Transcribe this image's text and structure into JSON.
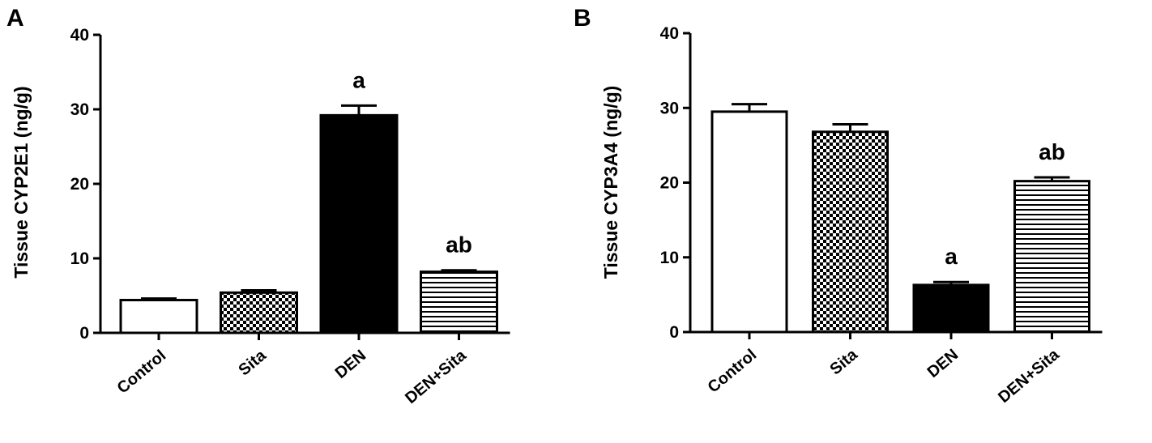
{
  "colors": {
    "ink": "#000000",
    "background": "#ffffff"
  },
  "chart_data": [
    {
      "panel": "A",
      "type": "bar",
      "title": "",
      "xlabel": "",
      "ylabel": "Tissue CYP2E1 (ng/g)",
      "ylim": [
        0,
        40
      ],
      "yticks": [
        "0",
        "10",
        "20",
        "30",
        "40"
      ],
      "grid": false,
      "categories": [
        "Control",
        "Sita",
        "DEN",
        "DEN+Sita"
      ],
      "values": [
        4.4,
        5.4,
        29.2,
        8.2
      ],
      "errors": [
        0.2,
        0.3,
        1.3,
        0.2
      ],
      "fills": [
        "white",
        "checker",
        "black",
        "horizontal-stripes"
      ],
      "annotations": [
        "",
        "",
        "a",
        "ab"
      ]
    },
    {
      "panel": "B",
      "type": "bar",
      "title": "",
      "xlabel": "",
      "ylabel": "Tissue CYP3A4 (ng/g)",
      "ylim": [
        0,
        40
      ],
      "yticks": [
        "0",
        "10",
        "20",
        "30",
        "40"
      ],
      "grid": false,
      "categories": [
        "Control",
        "Sita",
        "DEN",
        "DEN+Sita"
      ],
      "values": [
        29.5,
        26.8,
        6.3,
        20.2
      ],
      "errors": [
        1.0,
        1.0,
        0.4,
        0.5
      ],
      "fills": [
        "white",
        "checker",
        "black",
        "horizontal-stripes"
      ],
      "annotations": [
        "",
        "",
        "a",
        "ab"
      ]
    }
  ]
}
